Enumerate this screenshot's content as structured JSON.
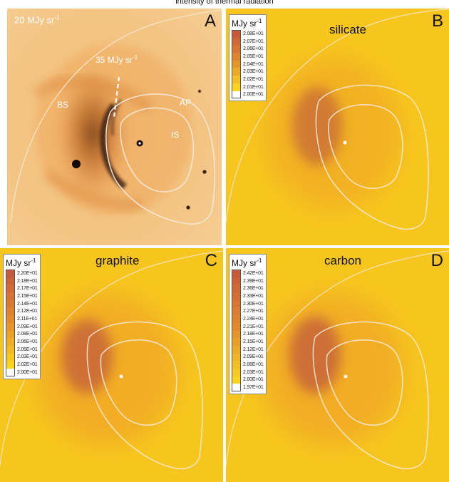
{
  "figure_title": "intensity of thermal radiation",
  "colors": {
    "background": "#f6c61e",
    "contour": "#f4ead8",
    "photo_base": "#f3c17a",
    "rim_dark": "#4a2a1a"
  },
  "panel_a": {
    "letter": "A",
    "label_top": "20 MJy sr",
    "label_top_exp": "-1",
    "label_peak": "35 MJy sr",
    "label_peak_exp": "-1",
    "label_bs": "BS",
    "label_ap": "AP",
    "label_is": "IS"
  },
  "panel_b": {
    "letter": "B",
    "name": "silicate",
    "unit": "MJy sr",
    "unit_exp": "-1",
    "legend": [
      "2.08E+01",
      "2.07E+01",
      "2.06E+01",
      "2.05E+01",
      "2.04E+01",
      "2.03E+01",
      "2.02E+01",
      "2.01E+01",
      "2.00E+01"
    ]
  },
  "panel_c": {
    "letter": "C",
    "name": "graphite",
    "unit": "MJy sr",
    "unit_exp": "-1",
    "legend": [
      "2.20E+01",
      "2.18E+01",
      "2.17E+01",
      "2.15E+01",
      "2.14E+01",
      "2.12E+01",
      "2.11E+01",
      "2.09E+01",
      "2.08E+01",
      "2.06E+01",
      "2.05E+01",
      "2.03E+01",
      "2.02E+01",
      "2.00E+01"
    ]
  },
  "panel_d": {
    "letter": "D",
    "name": "carbon",
    "unit": "MJy sr",
    "unit_exp": "-1",
    "legend": [
      "2.42E+01",
      "2.39E+01",
      "2.36E+01",
      "2.33E+01",
      "2.30E+01",
      "2.27E+01",
      "2.24E+01",
      "2.21E+01",
      "2.18E+01",
      "2.15E+01",
      "2.12E+01",
      "2.09E+01",
      "2.06E+01",
      "2.03E+01",
      "2.00E+01",
      "1.97E+01"
    ]
  }
}
